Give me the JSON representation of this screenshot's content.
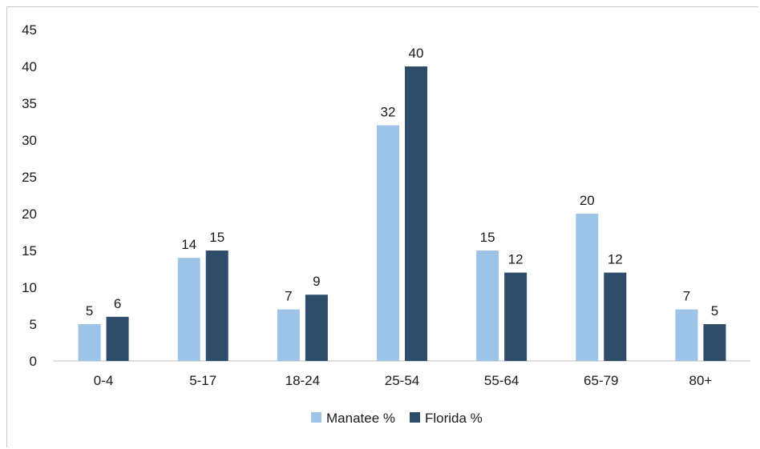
{
  "chart_data": {
    "type": "bar",
    "title": "",
    "xlabel": "",
    "ylabel": "",
    "categories": [
      "0-4",
      "5-17",
      "18-24",
      "25-54",
      "55-64",
      "65-79",
      "80+"
    ],
    "series": [
      {
        "name": "Manatee %",
        "values": [
          5,
          14,
          7,
          32,
          15,
          20,
          7
        ],
        "color": "#9dc3e6"
      },
      {
        "name": "Florida %",
        "values": [
          6,
          15,
          9,
          40,
          12,
          12,
          5
        ],
        "color": "#2e4d6b"
      }
    ],
    "ylim": [
      0,
      45
    ],
    "yticks": [
      0,
      5,
      10,
      15,
      20,
      25,
      30,
      35,
      40,
      45
    ],
    "grid": false,
    "data_labels": true,
    "legend_position": "bottom-center"
  }
}
